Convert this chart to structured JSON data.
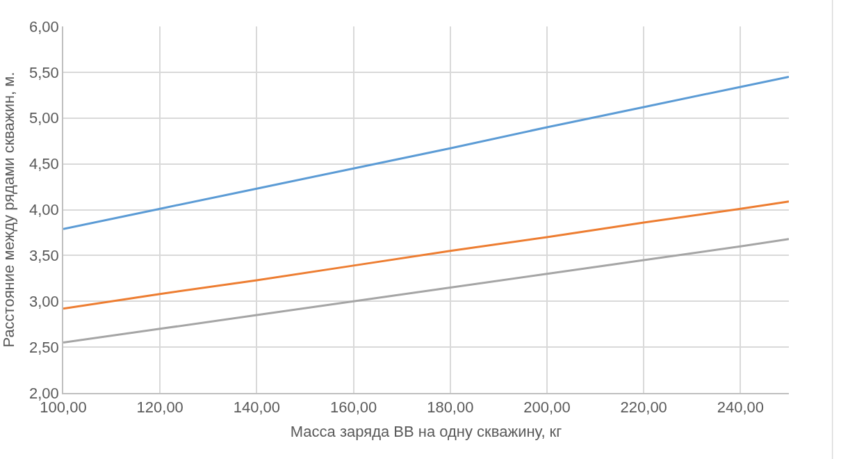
{
  "chart_data": {
    "type": "line",
    "xlabel": "Масса заряда ВВ на одну скважину, кг",
    "ylabel": "Расстояние между рядами скважин, м.",
    "x": [
      100,
      120,
      140,
      160,
      180,
      200,
      220,
      240,
      250
    ],
    "series": [
      {
        "color": "#5b9bd5",
        "values": [
          3.79,
          4.01,
          4.23,
          4.45,
          4.67,
          4.9,
          5.12,
          5.34,
          5.45
        ]
      },
      {
        "color": "#ed7d31",
        "values": [
          2.92,
          3.08,
          3.23,
          3.39,
          3.55,
          3.7,
          3.86,
          4.01,
          4.09
        ]
      },
      {
        "color": "#a5a5a5",
        "values": [
          2.55,
          2.7,
          2.85,
          3.0,
          3.15,
          3.3,
          3.45,
          3.6,
          3.68
        ]
      }
    ],
    "xlim": [
      100,
      250
    ],
    "xticks": [
      {
        "value": 100,
        "label": "100,00"
      },
      {
        "value": 120,
        "label": "120,00"
      },
      {
        "value": 140,
        "label": "140,00"
      },
      {
        "value": 160,
        "label": "160,00"
      },
      {
        "value": 180,
        "label": "180,00"
      },
      {
        "value": 200,
        "label": "200,00"
      },
      {
        "value": 220,
        "label": "220,00"
      },
      {
        "value": 240,
        "label": "240,00"
      }
    ],
    "ylim": [
      2,
      6
    ],
    "yticks": [
      {
        "value": 2,
        "label": "2,00"
      },
      {
        "value": 2.5,
        "label": "2,50"
      },
      {
        "value": 3,
        "label": "3,00"
      },
      {
        "value": 3.5,
        "label": "3,50"
      },
      {
        "value": 4,
        "label": "4,00"
      },
      {
        "value": 4.5,
        "label": "4,50"
      },
      {
        "value": 5,
        "label": "5,00"
      },
      {
        "value": 5.5,
        "label": "5,50"
      },
      {
        "value": 6,
        "label": "6,00"
      }
    ],
    "grid": true,
    "marker": "none",
    "line_style": "solid"
  }
}
